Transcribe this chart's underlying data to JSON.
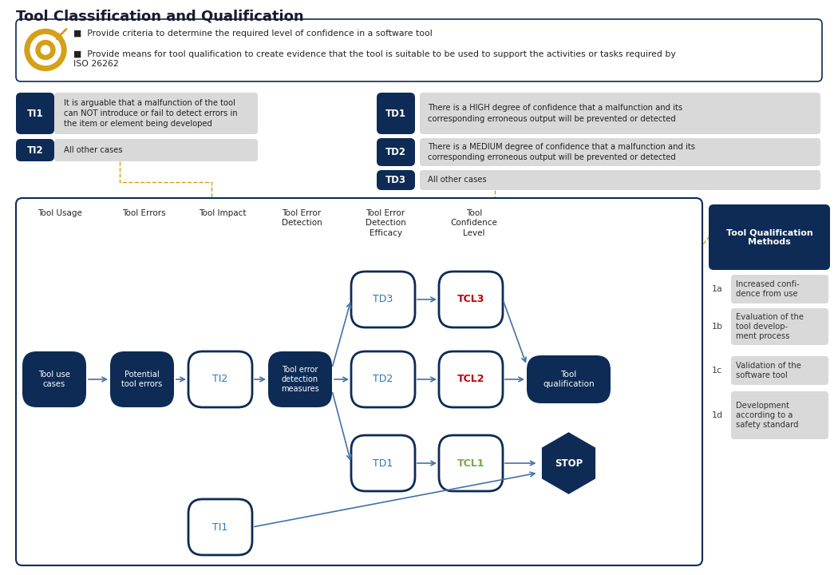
{
  "title": "Tool Classification and Qualification",
  "title_color": "#1a1a2e",
  "bg_color": "#ffffff",
  "dark_navy": "#0d2b55",
  "light_gray": "#d9d9d9",
  "teal_text": "#2e75b6",
  "red_text": "#c00000",
  "green_text": "#70ad47",
  "gold_color": "#d4a017",
  "arr_color": "#4472a8",
  "header_intro_line1": "Provide criteria to determine the required level of confidence in a software tool",
  "header_intro_line2": "Provide means for tool qualification to create evidence that the tool is suitable to be used to support the activities or tasks required by\nISO 26262",
  "ti1_text": "It is arguable that a malfunction of the tool\ncan NOT introduce or fail to detect errors in\nthe item or element being developed",
  "ti2_text": "All other cases",
  "td1_text": "There is a HIGH degree of confidence that a malfunction and its\ncorresponding erroneous output will be prevented or detected",
  "td2_text": "There is a MEDIUM degree of confidence that a malfunction and its\ncorresponding erroneous output will be prevented or detected",
  "td3_text": "All other cases",
  "flow_headers": [
    "Tool Usage",
    "Tool Errors",
    "Tool Impact",
    "Tool Error\nDetection",
    "Tool Error\nDetection\nEfficacy",
    "Tool\nConfidence\nLevel"
  ],
  "qual_methods_header": "Tool Qualification\nMethods",
  "qual_methods": [
    {
      "id": "1a",
      "text": "Increased confi-\ndence from use"
    },
    {
      "id": "1b",
      "text": "Evaluation of the\ntool develop-\nment process"
    },
    {
      "id": "1c",
      "text": "Validation of the\nsoftware tool"
    },
    {
      "id": "1d",
      "text": "Development\naccording to a\nsafety standard"
    }
  ]
}
